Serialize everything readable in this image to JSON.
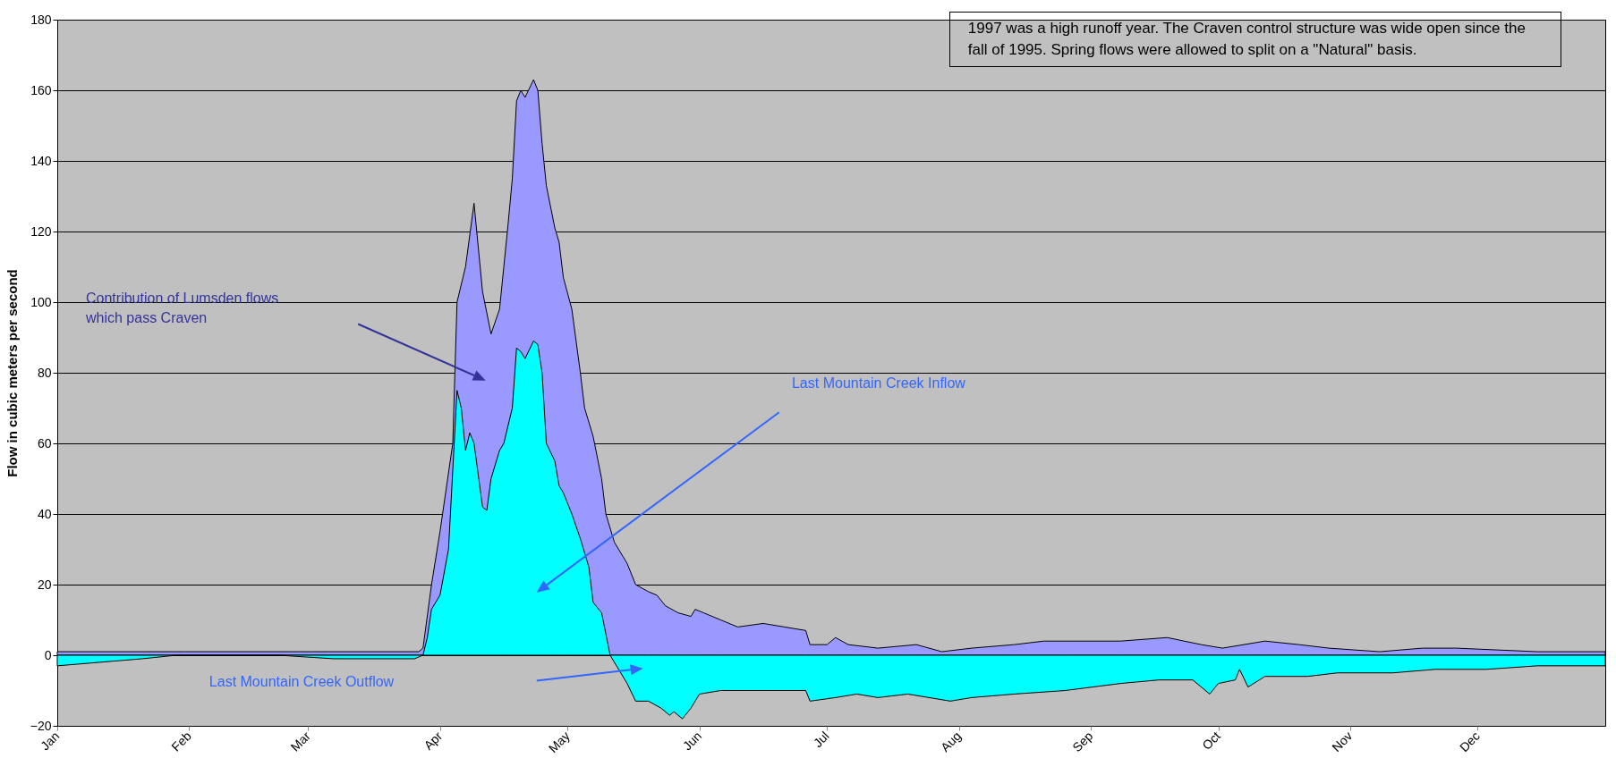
{
  "chart_data": {
    "type": "area",
    "ylabel": "Flow in cubic meters per second",
    "xlim": [
      "1997-01-01",
      "1997-12-31"
    ],
    "ylim": [
      -20,
      180
    ],
    "yticks": [
      -20,
      0,
      20,
      40,
      60,
      80,
      100,
      120,
      140,
      160,
      180
    ],
    "xticks": [
      {
        "value": "1997-01-01",
        "label": "Jan"
      },
      {
        "value": "1997-02-01",
        "label": "Feb"
      },
      {
        "value": "1997-03-01",
        "label": "Mar"
      },
      {
        "value": "1997-04-01",
        "label": "Apr"
      },
      {
        "value": "1997-05-01",
        "label": "May"
      },
      {
        "value": "1997-06-01",
        "label": "Jun"
      },
      {
        "value": "1997-07-01",
        "label": "Jul"
      },
      {
        "value": "1997-08-01",
        "label": "Aug"
      },
      {
        "value": "1997-09-01",
        "label": "Sep"
      },
      {
        "value": "1997-10-01",
        "label": "Oct"
      },
      {
        "value": "1997-11-01",
        "label": "Nov"
      },
      {
        "value": "1997-12-01",
        "label": "Dec"
      }
    ],
    "grid": "y",
    "annotations": [
      "1997 was a high runoff year.  The Craven control structure was wide open since the fall of 1995.  Spring flows were allowed to split on a \"Natural\" basis.",
      "Contribution of Lumsden flows which pass Craven",
      "Last Mountain Creek Inflow",
      "Last Mountain Creek Outflow"
    ],
    "series": [
      {
        "color": "#9999ff",
        "x": [
          "1997-01-01",
          "1997-01-31",
          "1997-03-02",
          "1997-03-27",
          "1997-03-28",
          "1997-03-30",
          "1997-04-01",
          "1997-04-04",
          "1997-04-05",
          "1997-04-07",
          "1997-04-09",
          "1997-04-11",
          "1997-04-13",
          "1997-04-15",
          "1997-04-16",
          "1997-04-17",
          "1997-04-18",
          "1997-04-19",
          "1997-04-20",
          "1997-04-21",
          "1997-04-23",
          "1997-04-24",
          "1997-04-25",
          "1997-04-26",
          "1997-04-28",
          "1997-04-29",
          "1997-04-30",
          "1997-05-02",
          "1997-05-04",
          "1997-05-05",
          "1997-05-07",
          "1997-05-09",
          "1997-05-10",
          "1997-05-12",
          "1997-05-14",
          "1997-05-15",
          "1997-05-17",
          "1997-05-20",
          "1997-05-22",
          "1997-05-24",
          "1997-05-27",
          "1997-05-30",
          "1997-05-31",
          "1997-06-02",
          "1997-06-06",
          "1997-06-10",
          "1997-06-16",
          "1997-06-21",
          "1997-06-26",
          "1997-06-27",
          "1997-07-01",
          "1997-07-03",
          "1997-07-06",
          "1997-07-13",
          "1997-07-22",
          "1997-07-28",
          "1997-08-04",
          "1997-08-14",
          "1997-08-21",
          "1997-09-08",
          "1997-09-19",
          "1997-09-27",
          "1997-10-02",
          "1997-10-12",
          "1997-10-20",
          "1997-10-27",
          "1997-11-08",
          "1997-11-18",
          "1997-11-26",
          "1997-12-15",
          "1997-12-31"
        ],
        "values": [
          1,
          1,
          1,
          1,
          2,
          20,
          35,
          60,
          100,
          110,
          128,
          103,
          91,
          98,
          110,
          122,
          135,
          157,
          160,
          158,
          163,
          160,
          145,
          133,
          121,
          117,
          107,
          98,
          80,
          70,
          62,
          50,
          40,
          32,
          28,
          26,
          20,
          18,
          17,
          14,
          12,
          11,
          13,
          12,
          10,
          8,
          9,
          8,
          7,
          3,
          3,
          5,
          3,
          2,
          3,
          1,
          2,
          3,
          4,
          4,
          5,
          3,
          2,
          4,
          3,
          2,
          1,
          2,
          2,
          1,
          1
        ]
      },
      {
        "color": "#00ffff",
        "x": [
          "1997-01-01",
          "1997-01-11",
          "1997-01-21",
          "1997-01-29",
          "1997-02-22",
          "1997-03-07",
          "1997-03-26",
          "1997-03-28",
          "1997-03-29",
          "1997-03-30",
          "1997-04-01",
          "1997-04-03",
          "1997-04-05",
          "1997-04-06",
          "1997-04-07",
          "1997-04-08",
          "1997-04-09",
          "1997-04-11",
          "1997-04-12",
          "1997-04-13",
          "1997-04-15",
          "1997-04-16",
          "1997-04-18",
          "1997-04-19",
          "1997-04-20",
          "1997-04-21",
          "1997-04-23",
          "1997-04-24",
          "1997-04-25",
          "1997-04-26",
          "1997-04-28",
          "1997-04-29",
          "1997-04-30",
          "1997-05-02",
          "1997-05-04",
          "1997-05-06",
          "1997-05-07",
          "1997-05-09",
          "1997-05-11",
          "1997-05-12",
          "1997-05-15",
          "1997-05-17",
          "1997-05-20",
          "1997-05-23",
          "1997-05-25",
          "1997-05-26",
          "1997-05-28",
          "1997-05-30",
          "1997-06-01",
          "1997-06-06",
          "1997-06-16",
          "1997-06-26",
          "1997-06-27",
          "1997-07-03",
          "1997-07-08",
          "1997-07-13",
          "1997-07-20",
          "1997-07-30",
          "1997-08-04",
          "1997-08-14",
          "1997-08-26",
          "1997-09-08",
          "1997-09-17",
          "1997-09-25",
          "1997-09-29",
          "1997-10-01",
          "1997-10-05",
          "1997-10-06",
          "1997-10-08",
          "1997-10-12",
          "1997-10-22",
          "1997-10-29",
          "1997-11-11",
          "1997-11-21",
          "1997-12-03",
          "1997-12-15",
          "1997-12-31"
        ],
        "values": [
          -3,
          -2,
          -1,
          0,
          0,
          -1,
          -1,
          0,
          5,
          13,
          17,
          30,
          75,
          70,
          58,
          63,
          60,
          42,
          41,
          50,
          58,
          60,
          70,
          87,
          86,
          84,
          89,
          88,
          80,
          60,
          55,
          48,
          46,
          40,
          33,
          25,
          15,
          12,
          0,
          -2,
          -8,
          -13,
          -13,
          -15,
          -17,
          -16,
          -18,
          -15,
          -11,
          -10,
          -10,
          -10,
          -13,
          -12,
          -11,
          -12,
          -11,
          -13,
          -12,
          -11,
          -10,
          -8,
          -7,
          -7,
          -11,
          -8,
          -7,
          -4,
          -9,
          -6,
          -6,
          -5,
          -5,
          -4,
          -4,
          -3,
          -3
        ]
      }
    ]
  }
}
